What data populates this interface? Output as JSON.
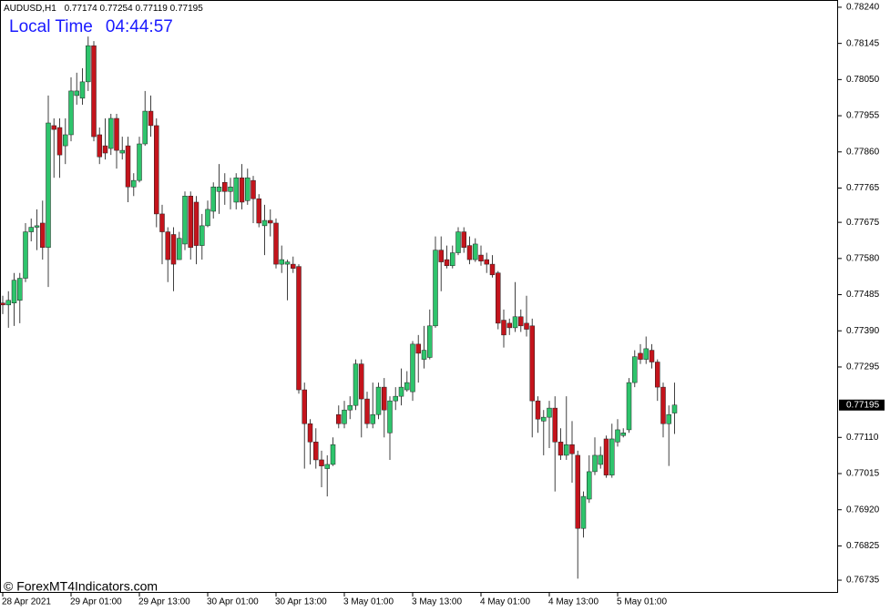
{
  "chart_data": {
    "type": "candlestick",
    "symbol": "AUDUSD,H1",
    "local_time_label": "Local Time",
    "local_time": "04:44:57",
    "watermark": "© ForexMT4Indicators.com",
    "up_color": "#2ec46c",
    "down_color": "#c4141c",
    "wick_color": "#404040",
    "ylim": [
      0.76704,
      0.78259
    ],
    "yticks": [
      {
        "value": 0.7824,
        "label": "0.78240"
      },
      0.78145,
      {
        "value": 0.7805,
        "label": "0.78050"
      },
      0.77955,
      {
        "value": 0.7786,
        "label": "0.77860"
      },
      0.77765,
      0.77675,
      {
        "value": 0.7758,
        "label": "0.77580"
      },
      0.77485,
      {
        "value": 0.7739,
        "label": "0.77390"
      },
      0.77295,
      {
        "value": 0.7711,
        "label": "0.77110"
      },
      0.77015,
      {
        "value": 0.7692,
        "label": "0.76920"
      },
      0.76825,
      0.76735
    ],
    "categories": [
      "28 Apr 2021",
      null,
      null,
      null,
      null,
      null,
      null,
      null,
      null,
      null,
      null,
      null,
      "29 Apr 01:00",
      null,
      null,
      null,
      null,
      null,
      null,
      null,
      null,
      null,
      null,
      null,
      "29 Apr 13:00",
      null,
      null,
      null,
      null,
      null,
      null,
      null,
      null,
      null,
      null,
      null,
      "30 Apr 01:00",
      null,
      null,
      null,
      null,
      null,
      null,
      null,
      null,
      null,
      null,
      null,
      "30 Apr 13:00",
      null,
      null,
      null,
      null,
      null,
      null,
      null,
      null,
      null,
      null,
      null,
      "3 May 01:00",
      null,
      null,
      null,
      null,
      null,
      null,
      null,
      null,
      null,
      null,
      null,
      "3 May 13:00",
      null,
      null,
      null,
      null,
      null,
      null,
      null,
      null,
      null,
      null,
      null,
      "4 May 01:00",
      null,
      null,
      null,
      null,
      null,
      null,
      null,
      null,
      null,
      null,
      null,
      "4 May 13:00",
      null,
      null,
      null,
      null,
      null,
      null,
      null,
      null,
      null,
      null,
      null,
      "5 May 01:00",
      null,
      null,
      null,
      null,
      null,
      null,
      null,
      null,
      null,
      null
    ],
    "open": [
      0.77463,
      0.77458,
      0.77463,
      0.7747,
      0.77528,
      0.7765,
      0.77662,
      0.77673,
      0.77609,
      0.77929,
      0.77924,
      0.77876,
      0.77905,
      0.78008,
      0.78001,
      0.78044,
      0.78139,
      0.77905,
      0.77876,
      0.77869,
      0.77948,
      0.77857,
      0.77876,
      0.77768,
      0.77785,
      0.77881,
      0.77967,
      0.77929,
      0.77697,
      0.7765,
      0.77643,
      0.77577,
      0.77618,
      0.77744,
      0.77728,
      0.77614,
      0.77666,
      0.77704,
      0.77756,
      0.7778,
      0.77756,
      0.77728,
      0.77792,
      0.77732,
      0.77785,
      0.77737,
      0.77666,
      0.7768,
      0.77673,
      0.77565,
      0.77565,
      0.77565,
      0.77559,
      0.77235,
      0.77146,
      0.77098,
      0.77051,
      0.77028,
      0.77039,
      0.7717,
      0.77146,
      0.77182,
      0.77194,
      0.77303,
      0.77211,
      0.77146,
      0.7717,
      0.77242,
      0.77122,
      0.77206,
      0.77218,
      0.77235,
      0.7723,
      0.77355,
      0.77315,
      0.7732,
      0.77403,
      0.77602,
      0.77577,
      0.77561,
      0.77595,
      0.7765,
      0.77614,
      0.77577,
      0.77589,
      0.77577,
      0.77565,
      0.77542,
      0.77418,
      0.7741,
      0.77398,
      0.77427,
      0.7741,
      0.77403,
      0.77206,
      0.77153,
      0.77163,
      0.77187,
      0.77098,
      0.77063,
      0.77091,
      0.77063,
      0.76871,
      0.76948,
      0.7702,
      0.77039,
      0.77106,
      0.77011,
      0.77098,
      0.77115,
      0.7713,
      0.77254,
      0.77331,
      0.77315,
      0.77339,
      0.77308,
      0.77242,
      0.77146,
      0.77174
    ],
    "high": [
      0.77482,
      0.77494,
      0.77542,
      0.77542,
      0.77673,
      0.77685,
      0.77709,
      0.77732,
      0.78008,
      0.77948,
      0.77948,
      0.77948,
      0.78056,
      0.78068,
      0.7808,
      0.78163,
      0.78151,
      0.77924,
      0.77948,
      0.7796,
      0.7796,
      0.779,
      0.779,
      0.77804,
      0.779,
      0.7802,
      0.78008,
      0.77948,
      0.77721,
      0.77662,
      0.77662,
      0.7765,
      0.77756,
      0.77756,
      0.77744,
      0.77697,
      0.77732,
      0.7778,
      0.77828,
      0.77804,
      0.77792,
      0.77804,
      0.77828,
      0.77816,
      0.77797,
      0.77749,
      0.77721,
      0.77709,
      0.77685,
      0.77614,
      0.77577,
      0.77585,
      0.77565,
      0.77254,
      0.77158,
      0.77134,
      0.77075,
      0.77063,
      0.7711,
      0.77194,
      0.77206,
      0.77218,
      0.77315,
      0.77315,
      0.7723,
      0.77254,
      0.77254,
      0.77266,
      0.77218,
      0.77242,
      0.77291,
      0.77284,
      0.77363,
      0.77379,
      0.77403,
      0.77446,
      0.77638,
      0.77638,
      0.77614,
      0.77614,
      0.77662,
      0.77662,
      0.77638,
      0.77633,
      0.77614,
      0.77595,
      0.77589,
      0.77547,
      0.77446,
      0.77422,
      0.77518,
      0.77446,
      0.77482,
      0.77422,
      0.77218,
      0.77182,
      0.77206,
      0.77218,
      0.77134,
      0.77218,
      0.77153,
      0.77075,
      0.76968,
      0.77063,
      0.7711,
      0.77086,
      0.77115,
      0.77146,
      0.77158,
      0.77134,
      0.77266,
      0.77339,
      0.77355,
      0.77375,
      0.77355,
      0.77315,
      0.77254,
      0.77194,
      0.77254
    ],
    "low": [
      0.77434,
      0.77398,
      0.77403,
      0.7741,
      0.77518,
      0.77625,
      0.77602,
      0.77577,
      0.77505,
      0.77792,
      0.77792,
      0.77828,
      0.77888,
      0.77984,
      0.77984,
      0.7802,
      0.77888,
      0.77828,
      0.7784,
      0.77852,
      0.77816,
      0.7784,
      0.77728,
      0.77744,
      0.7778,
      0.77876,
      0.779,
      0.77662,
      0.77565,
      0.77518,
      0.77494,
      0.77577,
      0.77602,
      0.77577,
      0.77565,
      0.77577,
      0.77662,
      0.77685,
      0.77697,
      0.77721,
      0.77709,
      0.77709,
      0.77709,
      0.77721,
      0.77673,
      0.77662,
      0.77589,
      0.77638,
      0.77554,
      0.77542,
      0.7747,
      0.77542,
      0.77225,
      0.77028,
      0.77039,
      0.77028,
      0.76979,
      0.76955,
      0.77035,
      0.77134,
      0.77134,
      0.77158,
      0.77182,
      0.7711,
      0.77134,
      0.77134,
      0.77158,
      0.7711,
      0.77051,
      0.77182,
      0.77194,
      0.7723,
      0.77206,
      0.77254,
      0.77291,
      0.77315,
      0.77398,
      0.77494,
      0.77554,
      0.77554,
      0.77589,
      0.77595,
      0.77565,
      0.77571,
      0.77561,
      0.77542,
      0.7753,
      0.77394,
      0.77346,
      0.77379,
      0.77387,
      0.77387,
      0.77375,
      0.7711,
      0.77122,
      0.77063,
      0.77082,
      0.76968,
      0.77051,
      0.77051,
      0.76991,
      0.76739,
      0.76847,
      0.76938,
      0.77011,
      0.77028,
      0.77004,
      0.77004,
      0.77086,
      0.7711,
      0.77122,
      0.77242,
      0.77303,
      0.77303,
      0.77291,
      0.77206,
      0.7711,
      0.77035,
      0.77119
    ],
    "close": [
      0.77458,
      0.7747,
      0.77523,
      0.77528,
      0.7765,
      0.77662,
      0.77666,
      0.77609,
      0.77936,
      0.77919,
      0.77852,
      0.77905,
      0.7802,
      0.7802,
      0.78044,
      0.78139,
      0.779,
      0.77847,
      0.77857,
      0.77948,
      0.77864,
      0.77864,
      0.77768,
      0.77785,
      0.77881,
      0.77967,
      0.77929,
      0.77697,
      0.7765,
      0.77577,
      0.77565,
      0.77633,
      0.77744,
      0.77609,
      0.77614,
      0.77666,
      0.77709,
      0.77768,
      0.77768,
      0.77756,
      0.77768,
      0.77792,
      0.77728,
      0.77792,
      0.77737,
      0.77673,
      0.7768,
      0.77673,
      0.77565,
      0.77577,
      0.77571,
      0.77554,
      0.77235,
      0.77146,
      0.77098,
      0.77051,
      0.77035,
      0.77039,
      0.77091,
      0.77146,
      0.77182,
      0.77194,
      0.77303,
      0.77211,
      0.77146,
      0.7717,
      0.77242,
      0.77182,
      0.77206,
      0.77218,
      0.77242,
      0.77254,
      0.77355,
      0.77331,
      0.77339,
      0.77403,
      0.77602,
      0.77571,
      0.77561,
      0.77595,
      0.7765,
      0.77609,
      0.77577,
      0.77618,
      0.77573,
      0.77565,
      0.77537,
      0.7741,
      0.77379,
      0.77398,
      0.77427,
      0.77403,
      0.77394,
      0.77206,
      0.77158,
      0.77163,
      0.77187,
      0.77098,
      0.77063,
      0.77091,
      0.77067,
      0.76871,
      0.76955,
      0.7702,
      0.77063,
      0.77063,
      0.77011,
      0.77106,
      0.7713,
      0.77122,
      0.77254,
      0.77322,
      0.77315,
      0.77343,
      0.77308,
      0.77242,
      0.77146,
      0.7717,
      0.77195
    ]
  }
}
